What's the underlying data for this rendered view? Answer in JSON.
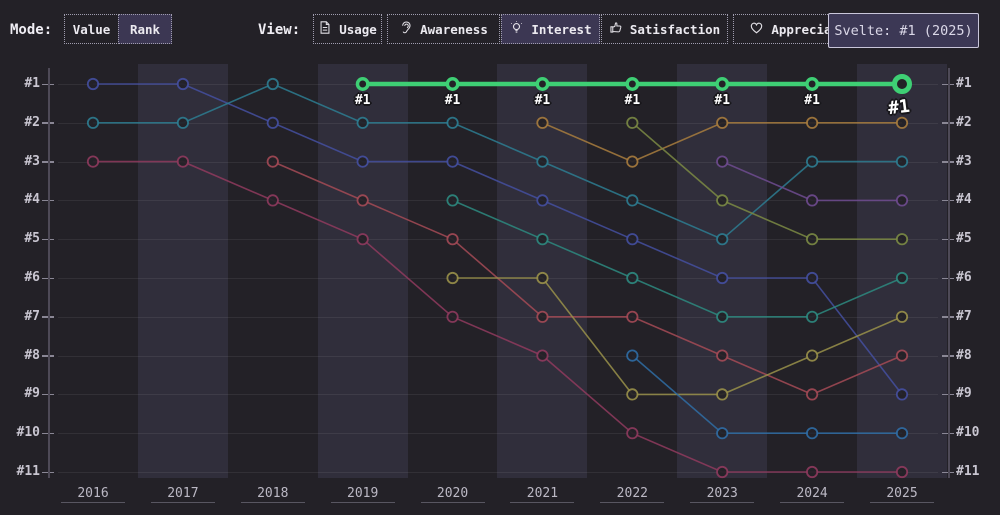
{
  "toolbar": {
    "mode_label": "Mode:",
    "modes": [
      {
        "key": "value",
        "label": "Value",
        "selected": false
      },
      {
        "key": "rank",
        "label": "Rank",
        "selected": true
      }
    ],
    "view_label": "View:",
    "views": [
      {
        "key": "usage",
        "label": "Usage",
        "icon": "document-icon",
        "selected": false
      },
      {
        "key": "awareness",
        "label": "Awareness",
        "icon": "ear-icon",
        "selected": false
      },
      {
        "key": "interest",
        "label": "Interest",
        "icon": "lightbulb-icon",
        "selected": true
      },
      {
        "key": "satisfaction",
        "label": "Satisfaction",
        "icon": "thumbs-up-icon",
        "selected": false
      },
      {
        "key": "appreciation",
        "label": "Appreciation",
        "icon": "heart-icon",
        "selected": false
      }
    ]
  },
  "tooltip": {
    "text": "Svelte: #1 (2025)"
  },
  "colors": {
    "background": "#232127",
    "band": "rgba(150,140,205,0.12)",
    "highlight_green": "#3ecf74",
    "tooltip_bg": "#3c3855",
    "selected_button_bg": "#3c3753"
  },
  "chart_data": {
    "type": "line",
    "subtype": "bump-rank",
    "x": [
      "2016",
      "2017",
      "2018",
      "2019",
      "2020",
      "2021",
      "2022",
      "2023",
      "2024",
      "2025"
    ],
    "y_labels": [
      "#1",
      "#2",
      "#3",
      "#4",
      "#5",
      "#6",
      "#7",
      "#8",
      "#9",
      "#10",
      "#11"
    ],
    "y_axis_note": "rank 1 at top, rank 11 at bottom; labels shown on both left and right axes",
    "legend": "none (series identified by color; hovered series named in tooltip)",
    "grid": true,
    "series": [
      {
        "name": "indigo",
        "color": "#444fa0",
        "ranks": [
          1,
          1,
          2,
          3,
          3,
          4,
          5,
          6,
          6,
          9
        ]
      },
      {
        "name": "teal",
        "color": "#2d7d92",
        "ranks": [
          2,
          2,
          1,
          2,
          2,
          3,
          4,
          5,
          3,
          3
        ]
      },
      {
        "name": "maroon",
        "color": "#8f3a5e",
        "ranks": [
          3,
          3,
          4,
          5,
          7,
          8,
          10,
          11,
          11,
          11
        ]
      },
      {
        "name": "rose",
        "color": "#a44a56",
        "ranks": [
          null,
          null,
          3,
          4,
          5,
          7,
          7,
          8,
          9,
          8
        ]
      },
      {
        "name": "cyan-teal",
        "color": "#2d8a80",
        "ranks": [
          null,
          null,
          null,
          null,
          4,
          5,
          6,
          7,
          7,
          6
        ]
      },
      {
        "name": "olive",
        "color": "#99904a",
        "ranks": [
          null,
          null,
          null,
          null,
          6,
          6,
          9,
          9,
          8,
          7
        ]
      },
      {
        "name": "orange",
        "color": "#a87c3e",
        "ranks": [
          null,
          null,
          null,
          null,
          null,
          2,
          3,
          2,
          2,
          2
        ]
      },
      {
        "name": "olive-green",
        "color": "#7b8a44",
        "ranks": [
          null,
          null,
          null,
          null,
          null,
          null,
          2,
          4,
          5,
          5
        ]
      },
      {
        "name": "steel-blue",
        "color": "#2f6da6",
        "ranks": [
          null,
          null,
          null,
          null,
          null,
          null,
          8,
          10,
          10,
          10
        ]
      },
      {
        "name": "purple",
        "color": "#6f4b90",
        "ranks": [
          null,
          null,
          null,
          null,
          null,
          null,
          null,
          3,
          4,
          4
        ]
      },
      {
        "name": "Svelte",
        "color": "#3ecf74",
        "ranks": [
          null,
          null,
          null,
          1,
          1,
          1,
          1,
          1,
          1,
          1
        ],
        "highlight": true,
        "point_labels": [
          "#1",
          "#1",
          "#1",
          "#1",
          "#1",
          "#1",
          "#1"
        ]
      }
    ]
  }
}
